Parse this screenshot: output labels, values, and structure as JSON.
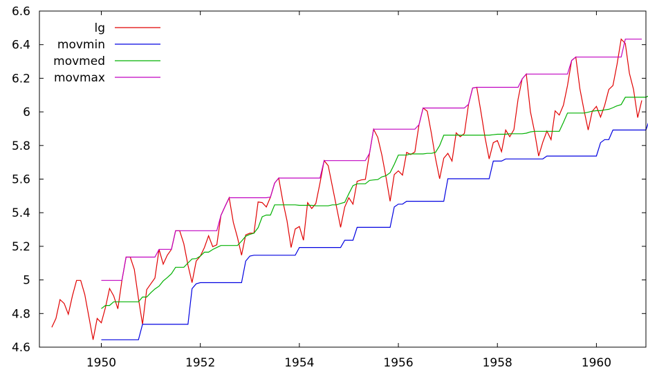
{
  "chart_data": {
    "type": "line",
    "title": "",
    "xlabel": "",
    "ylabel": "",
    "xlim": [
      1948.75,
      1961.0
    ],
    "ylim": [
      4.6,
      6.6
    ],
    "grid": false,
    "legend_position": "top-left",
    "x_ticks": [
      "1950",
      "1952",
      "1954",
      "1956",
      "1958",
      "1960"
    ],
    "y_ticks": [
      "4.6",
      "4.8",
      "5",
      "5.2",
      "5.4",
      "5.6",
      "5.8",
      "6",
      "6.2",
      "6.4",
      "6.6"
    ],
    "x_start": 1949.0,
    "x_step": 0.0833333,
    "series": [
      {
        "name": "lg",
        "color": "#e00000",
        "offset": 0,
        "values": [
          4.718,
          4.771,
          4.883,
          4.86,
          4.796,
          4.905,
          4.997,
          4.997,
          4.913,
          4.779,
          4.644,
          4.771,
          4.745,
          4.836,
          4.949,
          4.905,
          4.828,
          4.997,
          5.136,
          5.136,
          5.063,
          4.89,
          4.736,
          4.942,
          4.977,
          5.011,
          5.182,
          5.094,
          5.147,
          5.182,
          5.293,
          5.293,
          5.215,
          5.088,
          4.984,
          5.112,
          5.142,
          5.193,
          5.263,
          5.198,
          5.209,
          5.384,
          5.438,
          5.489,
          5.342,
          5.252,
          5.147,
          5.268,
          5.278,
          5.278,
          5.464,
          5.46,
          5.434,
          5.493,
          5.576,
          5.606,
          5.468,
          5.352,
          5.193,
          5.303,
          5.318,
          5.236,
          5.46,
          5.425,
          5.455,
          5.576,
          5.71,
          5.68,
          5.557,
          5.434,
          5.313,
          5.434,
          5.489,
          5.451,
          5.587,
          5.595,
          5.598,
          5.753,
          5.897,
          5.849,
          5.743,
          5.613,
          5.468,
          5.627,
          5.649,
          5.624,
          5.759,
          5.746,
          5.762,
          5.924,
          6.023,
          6.004,
          5.872,
          5.724,
          5.602,
          5.724,
          5.753,
          5.707,
          5.875,
          5.852,
          5.872,
          6.045,
          6.142,
          6.146,
          6.001,
          5.849,
          5.72,
          5.817,
          5.829,
          5.763,
          5.892,
          5.852,
          5.894,
          6.075,
          6.196,
          6.225,
          6.001,
          5.883,
          5.737,
          5.82,
          5.886,
          5.835,
          6.006,
          5.981,
          6.04,
          6.157,
          6.306,
          6.326,
          6.138,
          6.009,
          5.892,
          6.004,
          6.033,
          5.969,
          6.038,
          6.133,
          6.157,
          6.282,
          6.433,
          6.407,
          6.23,
          6.133,
          5.966,
          6.068
        ]
      },
      {
        "name": "movmin",
        "color": "#0000e0",
        "offset": 12,
        "values": [
          4.644,
          4.644,
          4.644,
          4.644,
          4.644,
          4.644,
          4.644,
          4.644,
          4.644,
          4.644,
          4.736,
          4.736,
          4.736,
          4.736,
          4.736,
          4.736,
          4.736,
          4.736,
          4.736,
          4.736,
          4.736,
          4.736,
          4.948,
          4.977,
          4.984,
          4.984,
          4.984,
          4.984,
          4.984,
          4.984,
          4.984,
          4.984,
          4.984,
          4.984,
          4.984,
          5.112,
          5.142,
          5.147,
          5.147,
          5.147,
          5.147,
          5.147,
          5.147,
          5.147,
          5.147,
          5.147,
          5.147,
          5.147,
          5.193,
          5.193,
          5.193,
          5.193,
          5.193,
          5.193,
          5.193,
          5.193,
          5.193,
          5.193,
          5.193,
          5.236,
          5.236,
          5.236,
          5.313,
          5.313,
          5.313,
          5.313,
          5.313,
          5.313,
          5.313,
          5.313,
          5.313,
          5.434,
          5.451,
          5.451,
          5.468,
          5.468,
          5.468,
          5.468,
          5.468,
          5.468,
          5.468,
          5.468,
          5.468,
          5.468,
          5.602,
          5.602,
          5.602,
          5.602,
          5.602,
          5.602,
          5.602,
          5.602,
          5.602,
          5.602,
          5.602,
          5.707,
          5.707,
          5.707,
          5.72,
          5.72,
          5.72,
          5.72,
          5.72,
          5.72,
          5.72,
          5.72,
          5.72,
          5.72,
          5.737,
          5.737,
          5.737,
          5.737,
          5.737,
          5.737,
          5.737,
          5.737,
          5.737,
          5.737,
          5.737,
          5.737,
          5.737,
          5.817,
          5.835,
          5.835,
          5.892,
          5.892,
          5.892,
          5.892,
          5.892,
          5.892,
          5.892,
          5.892,
          5.892,
          5.966,
          5.966
        ]
      },
      {
        "name": "movmed",
        "color": "#00b000",
        "offset": 12,
        "values": [
          4.829,
          4.848,
          4.848,
          4.87,
          4.87,
          4.87,
          4.87,
          4.87,
          4.87,
          4.87,
          4.898,
          4.898,
          4.924,
          4.946,
          4.963,
          4.994,
          5.014,
          5.037,
          5.075,
          5.075,
          5.075,
          5.101,
          5.125,
          5.127,
          5.142,
          5.165,
          5.165,
          5.181,
          5.193,
          5.205,
          5.205,
          5.205,
          5.205,
          5.205,
          5.231,
          5.26,
          5.271,
          5.278,
          5.311,
          5.376,
          5.386,
          5.386,
          5.447,
          5.447,
          5.447,
          5.447,
          5.447,
          5.447,
          5.444,
          5.444,
          5.444,
          5.444,
          5.441,
          5.441,
          5.441,
          5.441,
          5.447,
          5.447,
          5.455,
          5.462,
          5.513,
          5.561,
          5.572,
          5.572,
          5.572,
          5.592,
          5.595,
          5.597,
          5.613,
          5.62,
          5.638,
          5.688,
          5.743,
          5.743,
          5.743,
          5.75,
          5.75,
          5.75,
          5.75,
          5.753,
          5.753,
          5.759,
          5.799,
          5.861,
          5.861,
          5.861,
          5.861,
          5.861,
          5.861,
          5.861,
          5.861,
          5.861,
          5.861,
          5.861,
          5.861,
          5.864,
          5.867,
          5.867,
          5.867,
          5.87,
          5.87,
          5.87,
          5.87,
          5.873,
          5.881,
          5.884,
          5.884,
          5.884,
          5.884,
          5.884,
          5.884,
          5.884,
          5.937,
          5.993,
          5.993,
          5.993,
          5.993,
          5.993,
          5.998,
          6.004,
          6.007,
          6.007,
          6.012,
          6.015,
          6.025,
          6.036,
          6.043,
          6.087,
          6.087,
          6.087,
          6.087,
          6.087,
          6.087,
          6.1,
          6.133,
          6.133,
          6.133
        ]
      },
      {
        "name": "movmax",
        "color": "#c000c0",
        "offset": 12,
        "values": [
          4.997,
          4.997,
          4.997,
          4.997,
          4.997,
          4.997,
          5.136,
          5.136,
          5.136,
          5.136,
          5.136,
          5.136,
          5.136,
          5.136,
          5.182,
          5.182,
          5.182,
          5.182,
          5.293,
          5.293,
          5.293,
          5.293,
          5.293,
          5.293,
          5.293,
          5.293,
          5.293,
          5.293,
          5.293,
          5.384,
          5.438,
          5.489,
          5.489,
          5.489,
          5.489,
          5.489,
          5.489,
          5.489,
          5.489,
          5.489,
          5.489,
          5.493,
          5.576,
          5.606,
          5.606,
          5.606,
          5.606,
          5.606,
          5.606,
          5.606,
          5.606,
          5.606,
          5.606,
          5.606,
          5.71,
          5.71,
          5.71,
          5.71,
          5.71,
          5.71,
          5.71,
          5.71,
          5.71,
          5.71,
          5.71,
          5.753,
          5.897,
          5.897,
          5.897,
          5.897,
          5.897,
          5.897,
          5.897,
          5.897,
          5.897,
          5.897,
          5.897,
          5.924,
          6.023,
          6.023,
          6.023,
          6.023,
          6.023,
          6.023,
          6.023,
          6.023,
          6.023,
          6.023,
          6.023,
          6.045,
          6.142,
          6.146,
          6.146,
          6.146,
          6.146,
          6.146,
          6.146,
          6.146,
          6.146,
          6.146,
          6.146,
          6.146,
          6.196,
          6.225,
          6.225,
          6.225,
          6.225,
          6.225,
          6.225,
          6.225,
          6.225,
          6.225,
          6.225,
          6.225,
          6.306,
          6.326,
          6.326,
          6.326,
          6.326,
          6.326,
          6.326,
          6.326,
          6.326,
          6.326,
          6.326,
          6.326,
          6.326,
          6.433,
          6.433,
          6.433,
          6.433,
          6.433
        ]
      }
    ]
  }
}
